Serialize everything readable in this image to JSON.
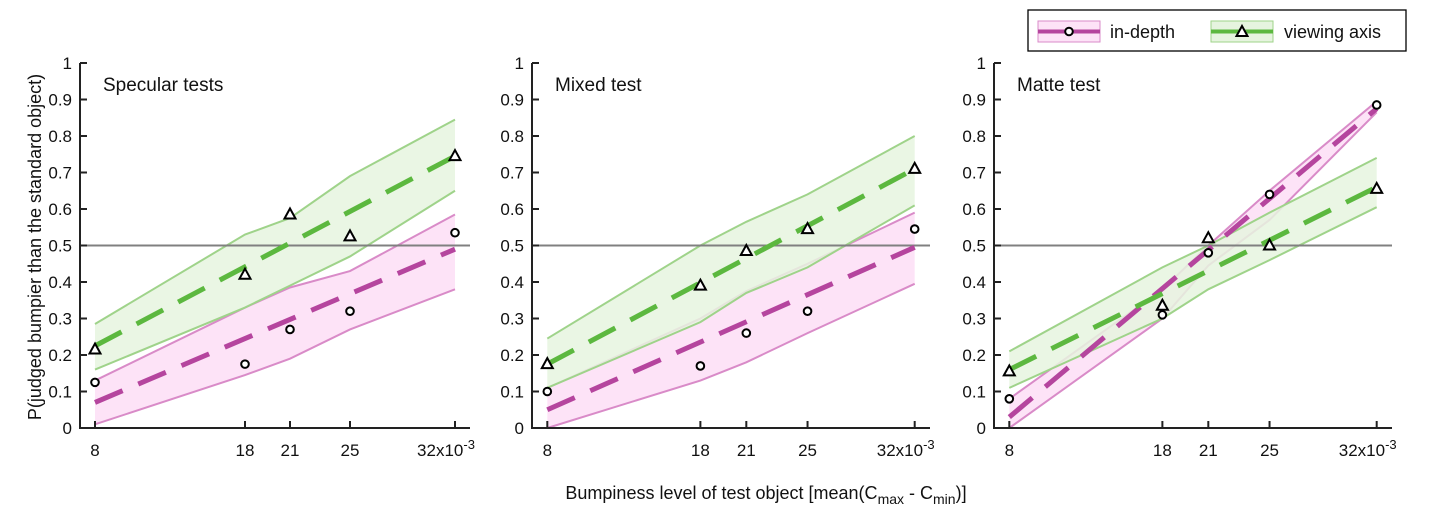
{
  "figure": {
    "ylabel": "P(judged bumpier than the standard object)",
    "xlabel_prefix": "Bumpiness level of test object [mean(C",
    "xlabel_sub1": "max",
    "xlabel_mid": " - C",
    "xlabel_sub2": "min",
    "xlabel_suffix": ")]",
    "x_scale_suffix": "x10",
    "x_scale_exponent": "-3",
    "colors": {
      "in_depth_line": "#b5459e",
      "in_depth_fill": "#fde3f7",
      "in_depth_band_edge": "#d98bc8",
      "viewing_axis_line": "#5cb83f",
      "viewing_axis_fill": "#e6f4df",
      "viewing_axis_band_edge": "#9fd38a",
      "reference_line": "#808080"
    }
  },
  "legend": {
    "items": [
      {
        "label": "in-depth",
        "marker": "circle",
        "color": "#b5459e"
      },
      {
        "label": "viewing axis",
        "marker": "triangle",
        "color": "#5cb83f"
      }
    ]
  },
  "chart_data": [
    {
      "type": "line",
      "title": "Specular tests",
      "xticks": [
        8,
        18,
        21,
        25,
        32
      ],
      "xtick_labels": [
        "8",
        "18",
        "21",
        "25",
        "32"
      ],
      "xlim": [
        7,
        33
      ],
      "ylim": [
        0,
        1
      ],
      "yticks": [
        0,
        0.1,
        0.2,
        0.3,
        0.4,
        0.5,
        0.6,
        0.7,
        0.8,
        0.9,
        1
      ],
      "reference_y": 0.5,
      "series": [
        {
          "name": "in-depth",
          "x": [
            8,
            18,
            21,
            25,
            32
          ],
          "y": [
            0.125,
            0.175,
            0.27,
            0.32,
            0.535
          ],
          "fit": [
            [
              8,
              0.07
            ],
            [
              32,
              0.49
            ]
          ],
          "band_upper": [
            [
              8,
              0.13
            ],
            [
              18,
              0.33
            ],
            [
              21,
              0.385
            ],
            [
              25,
              0.43
            ],
            [
              32,
              0.585
            ]
          ],
          "band_lower": [
            [
              8,
              0.01
            ],
            [
              18,
              0.145
            ],
            [
              21,
              0.19
            ],
            [
              25,
              0.27
            ],
            [
              32,
              0.38
            ]
          ]
        },
        {
          "name": "viewing axis",
          "x": [
            8,
            18,
            21,
            25,
            32
          ],
          "y": [
            0.215,
            0.42,
            0.585,
            0.525,
            0.745
          ],
          "fit": [
            [
              8,
              0.225
            ],
            [
              32,
              0.745
            ]
          ],
          "band_upper": [
            [
              8,
              0.285
            ],
            [
              18,
              0.53
            ],
            [
              21,
              0.575
            ],
            [
              25,
              0.69
            ],
            [
              32,
              0.845
            ]
          ],
          "band_lower": [
            [
              8,
              0.16
            ],
            [
              18,
              0.33
            ],
            [
              21,
              0.39
            ],
            [
              25,
              0.47
            ],
            [
              32,
              0.65
            ]
          ]
        }
      ]
    },
    {
      "type": "line",
      "title": "Mixed test",
      "xticks": [
        8,
        18,
        21,
        25,
        32
      ],
      "xtick_labels": [
        "8",
        "18",
        "21",
        "25",
        "32"
      ],
      "xlim": [
        7,
        33
      ],
      "ylim": [
        0,
        1
      ],
      "yticks": [
        0,
        0.1,
        0.2,
        0.3,
        0.4,
        0.5,
        0.6,
        0.7,
        0.8,
        0.9,
        1
      ],
      "reference_y": 0.5,
      "series": [
        {
          "name": "in-depth",
          "x": [
            8,
            18,
            21,
            25,
            32
          ],
          "y": [
            0.1,
            0.17,
            0.26,
            0.32,
            0.545
          ],
          "fit": [
            [
              8,
              0.05
            ],
            [
              32,
              0.495
            ]
          ],
          "band_upper": [
            [
              8,
              0.11
            ],
            [
              18,
              0.3
            ],
            [
              21,
              0.375
            ],
            [
              25,
              0.45
            ],
            [
              32,
              0.59
            ]
          ],
          "band_lower": [
            [
              8,
              0.0
            ],
            [
              18,
              0.13
            ],
            [
              21,
              0.18
            ],
            [
              25,
              0.26
            ],
            [
              32,
              0.395
            ]
          ]
        },
        {
          "name": "viewing axis",
          "x": [
            8,
            18,
            21,
            25,
            32
          ],
          "y": [
            0.175,
            0.39,
            0.485,
            0.545,
            0.71
          ],
          "fit": [
            [
              8,
              0.175
            ],
            [
              32,
              0.71
            ]
          ],
          "band_upper": [
            [
              8,
              0.245
            ],
            [
              18,
              0.5
            ],
            [
              21,
              0.565
            ],
            [
              25,
              0.64
            ],
            [
              32,
              0.8
            ]
          ],
          "band_lower": [
            [
              8,
              0.11
            ],
            [
              18,
              0.29
            ],
            [
              21,
              0.37
            ],
            [
              25,
              0.44
            ],
            [
              32,
              0.61
            ]
          ]
        }
      ]
    },
    {
      "type": "line",
      "title": "Matte test",
      "xticks": [
        8,
        18,
        21,
        25,
        32
      ],
      "xtick_labels": [
        "8",
        "18",
        "21",
        "25",
        "32"
      ],
      "xlim": [
        7,
        33
      ],
      "ylim": [
        0,
        1
      ],
      "yticks": [
        0,
        0.1,
        0.2,
        0.3,
        0.4,
        0.5,
        0.6,
        0.7,
        0.8,
        0.9,
        1
      ],
      "reference_y": 0.5,
      "series": [
        {
          "name": "in-depth",
          "x": [
            8,
            18,
            21,
            25,
            32
          ],
          "y": [
            0.08,
            0.31,
            0.48,
            0.64,
            0.885
          ],
          "fit": [
            [
              8,
              0.03
            ],
            [
              32,
              0.875
            ]
          ],
          "band_upper": [
            [
              8,
              0.08
            ],
            [
              18,
              0.38
            ],
            [
              21,
              0.5
            ],
            [
              25,
              0.65
            ],
            [
              32,
              0.895
            ]
          ],
          "band_lower": [
            [
              8,
              0.0
            ],
            [
              18,
              0.3
            ],
            [
              21,
              0.445
            ],
            [
              25,
              0.57
            ],
            [
              32,
              0.865
            ]
          ]
        },
        {
          "name": "viewing axis",
          "x": [
            8,
            18,
            21,
            25,
            32
          ],
          "y": [
            0.155,
            0.335,
            0.52,
            0.5,
            0.655
          ],
          "fit": [
            [
              8,
              0.16
            ],
            [
              32,
              0.66
            ]
          ],
          "band_upper": [
            [
              8,
              0.21
            ],
            [
              18,
              0.44
            ],
            [
              21,
              0.5
            ],
            [
              25,
              0.59
            ],
            [
              32,
              0.74
            ]
          ],
          "band_lower": [
            [
              8,
              0.11
            ],
            [
              18,
              0.3
            ],
            [
              21,
              0.38
            ],
            [
              25,
              0.46
            ],
            [
              32,
              0.605
            ]
          ]
        }
      ]
    }
  ]
}
